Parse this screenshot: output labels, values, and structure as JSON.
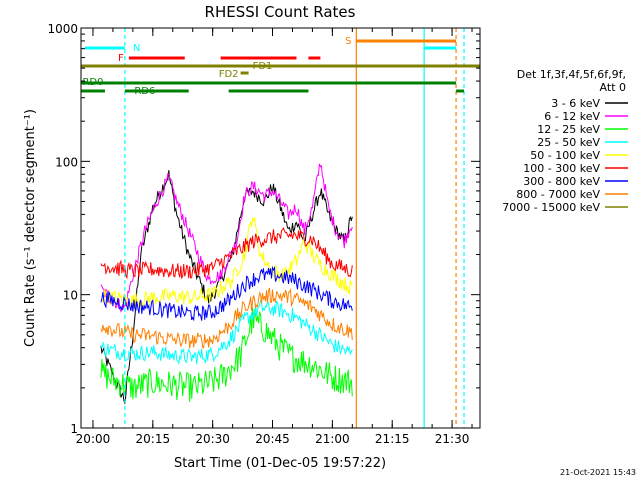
{
  "chart_data": {
    "type": "line",
    "title": "RHESSI Count Rates",
    "xlabel": "Start Time (01-Dec-05 19:57:22)",
    "ylabel": "Count Rate (s⁻¹ detector segment⁻¹)",
    "y_scale": "log",
    "ylim": [
      1,
      1000
    ],
    "xlim": [
      "19:57",
      "21:37"
    ],
    "x_ticks": [
      "20:00",
      "20:15",
      "20:30",
      "20:45",
      "21:00",
      "21:15",
      "21:30"
    ],
    "y_ticks": [
      "1",
      "10",
      "100",
      "1000"
    ],
    "legend_title": [
      "Det 1f,3f,4f,5f,6f,9f,",
      "Att 0"
    ],
    "timestamp": "21-Oct-2021 15:43",
    "grid": false,
    "legend_position": "right",
    "series": [
      {
        "name": "3 - 6 keV",
        "color": "#000000",
        "points": [
          [
            "20:02",
            4
          ],
          [
            "20:05",
            2.5
          ],
          [
            "20:08",
            1.6
          ],
          [
            "20:10",
            5
          ],
          [
            "20:12",
            20
          ],
          [
            "20:15",
            45
          ],
          [
            "20:17",
            60
          ],
          [
            "20:19",
            80
          ],
          [
            "20:21",
            40
          ],
          [
            "20:24",
            20
          ],
          [
            "20:27",
            12
          ],
          [
            "20:29",
            9
          ],
          [
            "20:31",
            11
          ],
          [
            "20:35",
            20
          ],
          [
            "20:38",
            55
          ],
          [
            "20:40",
            60
          ],
          [
            "20:43",
            50
          ],
          [
            "20:45",
            65
          ],
          [
            "20:47",
            45
          ],
          [
            "20:49",
            30
          ],
          [
            "20:51",
            35
          ],
          [
            "20:53",
            25
          ],
          [
            "20:55",
            40
          ],
          [
            "20:57",
            60
          ],
          [
            "20:59",
            40
          ],
          [
            "21:01",
            30
          ],
          [
            "21:03",
            25
          ],
          [
            "21:05",
            40
          ]
        ]
      },
      {
        "name": "6 - 12 keV",
        "color": "#ff00ff",
        "points": [
          [
            "20:02",
            11
          ],
          [
            "20:05",
            9
          ],
          [
            "20:08",
            8
          ],
          [
            "20:10",
            14
          ],
          [
            "20:13",
            30
          ],
          [
            "20:16",
            50
          ],
          [
            "20:19",
            75
          ],
          [
            "20:21",
            50
          ],
          [
            "20:24",
            30
          ],
          [
            "20:27",
            18
          ],
          [
            "20:29",
            13
          ],
          [
            "20:32",
            14
          ],
          [
            "20:36",
            25
          ],
          [
            "20:38",
            55
          ],
          [
            "20:40",
            65
          ],
          [
            "20:43",
            55
          ],
          [
            "20:45",
            60
          ],
          [
            "20:47",
            50
          ],
          [
            "20:49",
            40
          ],
          [
            "20:51",
            45
          ],
          [
            "20:53",
            30
          ],
          [
            "20:55",
            45
          ],
          [
            "20:57",
            100
          ],
          [
            "20:59",
            45
          ],
          [
            "21:01",
            30
          ],
          [
            "21:03",
            25
          ],
          [
            "21:05",
            35
          ]
        ]
      },
      {
        "name": "12 - 25 keV",
        "color": "#00ff00",
        "points": [
          [
            "20:02",
            2.6
          ],
          [
            "20:05",
            2.3
          ],
          [
            "20:10",
            2.0
          ],
          [
            "20:15",
            2.2
          ],
          [
            "20:20",
            2.1
          ],
          [
            "20:25",
            2.0
          ],
          [
            "20:30",
            2.2
          ],
          [
            "20:33",
            2.5
          ],
          [
            "20:37",
            3.5
          ],
          [
            "20:40",
            6.5
          ],
          [
            "20:43",
            5.5
          ],
          [
            "20:47",
            4.0
          ],
          [
            "20:50",
            3.4
          ],
          [
            "20:55",
            3.0
          ],
          [
            "21:00",
            2.4
          ],
          [
            "21:05",
            2.2
          ]
        ]
      },
      {
        "name": "25 - 50 keV",
        "color": "#00ffff",
        "points": [
          [
            "20:02",
            4.0
          ],
          [
            "20:05",
            3.8
          ],
          [
            "20:10",
            3.6
          ],
          [
            "20:15",
            3.7
          ],
          [
            "20:20",
            3.5
          ],
          [
            "20:25",
            3.4
          ],
          [
            "20:30",
            3.6
          ],
          [
            "20:34",
            4.5
          ],
          [
            "20:38",
            6.5
          ],
          [
            "20:42",
            8.0
          ],
          [
            "20:46",
            7.8
          ],
          [
            "20:50",
            7.0
          ],
          [
            "20:55",
            5.5
          ],
          [
            "21:00",
            4.2
          ],
          [
            "21:05",
            3.6
          ]
        ]
      },
      {
        "name": "50 - 100 keV",
        "color": "#ffff00",
        "points": [
          [
            "20:02",
            10
          ],
          [
            "20:05",
            9.5
          ],
          [
            "20:10",
            9
          ],
          [
            "20:15",
            9.5
          ],
          [
            "20:20",
            9.8
          ],
          [
            "20:25",
            9.5
          ],
          [
            "20:30",
            10
          ],
          [
            "20:35",
            13
          ],
          [
            "20:38",
            20
          ],
          [
            "20:40",
            40
          ],
          [
            "20:42",
            20
          ],
          [
            "20:45",
            15
          ],
          [
            "20:48",
            14
          ],
          [
            "20:51",
            18
          ],
          [
            "20:53",
            25
          ],
          [
            "20:56",
            18
          ],
          [
            "21:00",
            14
          ],
          [
            "21:05",
            11
          ]
        ]
      },
      {
        "name": "100 - 300 keV",
        "color": "#ff0000",
        "points": [
          [
            "20:02",
            17
          ],
          [
            "20:05",
            16
          ],
          [
            "20:10",
            15
          ],
          [
            "20:15",
            15.5
          ],
          [
            "20:20",
            15
          ],
          [
            "20:25",
            15
          ],
          [
            "20:30",
            16
          ],
          [
            "20:35",
            20
          ],
          [
            "20:40",
            25
          ],
          [
            "20:45",
            27
          ],
          [
            "20:50",
            28
          ],
          [
            "20:55",
            26
          ],
          [
            "21:00",
            17
          ],
          [
            "21:05",
            15
          ]
        ]
      },
      {
        "name": "300 - 800 keV",
        "color": "#0000ff",
        "points": [
          [
            "20:02",
            9.5
          ],
          [
            "20:05",
            9
          ],
          [
            "20:10",
            8.3
          ],
          [
            "20:15",
            8.0
          ],
          [
            "20:20",
            7.5
          ],
          [
            "20:25",
            7.2
          ],
          [
            "20:30",
            7.4
          ],
          [
            "20:34",
            9
          ],
          [
            "20:38",
            12
          ],
          [
            "20:42",
            14
          ],
          [
            "20:46",
            14
          ],
          [
            "20:50",
            13
          ],
          [
            "20:55",
            11
          ],
          [
            "21:00",
            9
          ],
          [
            "21:05",
            8
          ]
        ]
      },
      {
        "name": "800 - 7000 keV",
        "color": "#ff8000",
        "points": [
          [
            "20:02",
            6.0
          ],
          [
            "20:05",
            5.5
          ],
          [
            "20:10",
            5.0
          ],
          [
            "20:15",
            4.9
          ],
          [
            "20:20",
            4.6
          ],
          [
            "20:25",
            4.5
          ],
          [
            "20:30",
            4.6
          ],
          [
            "20:34",
            5.8
          ],
          [
            "20:38",
            8
          ],
          [
            "20:42",
            9.5
          ],
          [
            "20:46",
            10
          ],
          [
            "20:50",
            9.5
          ],
          [
            "20:55",
            8
          ],
          [
            "21:00",
            6
          ],
          [
            "21:05",
            5.2
          ]
        ]
      },
      {
        "name": "7000 - 15000 keV",
        "color": "#808000",
        "points": []
      }
    ],
    "annotations": [
      {
        "label": "N",
        "color": "#00ffff"
      },
      {
        "label": "F",
        "color": "#ff0000"
      },
      {
        "label": "FD1",
        "color": "#808000"
      },
      {
        "label": "FD2",
        "color": "#808000"
      },
      {
        "label": "RD0",
        "color": "#008000"
      },
      {
        "label": "RD6",
        "color": "#008000"
      },
      {
        "label": "S",
        "color": "#ff8000"
      }
    ]
  }
}
